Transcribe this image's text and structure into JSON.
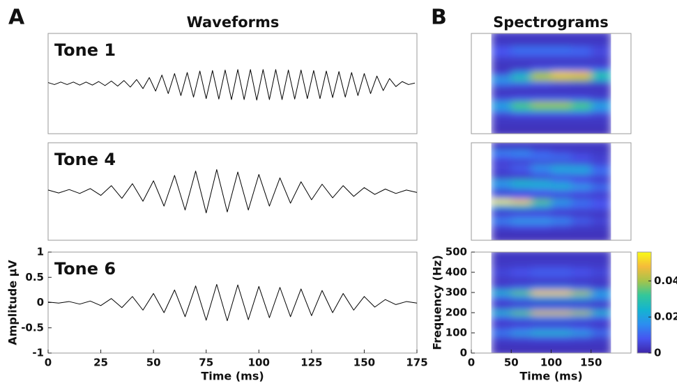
{
  "figure": {
    "panels": [
      {
        "letter": "A",
        "title": "Waveforms"
      },
      {
        "letter": "B",
        "title": "Spectrograms"
      }
    ]
  },
  "chart_data": [
    {
      "type": "line",
      "label": "Tone 1",
      "color": "#000000",
      "xlim": [
        0,
        175
      ],
      "ylim": [
        -1,
        1
      ],
      "x": [
        0,
        3,
        6,
        9,
        12,
        15,
        18,
        21,
        24,
        27,
        30,
        33,
        36,
        39,
        42,
        45,
        48,
        51,
        54,
        57,
        60,
        63,
        66,
        69,
        72,
        75,
        78,
        81,
        84,
        87,
        90,
        93,
        96,
        99,
        102,
        105,
        108,
        111,
        114,
        117,
        120,
        123,
        126,
        129,
        132,
        135,
        138,
        141,
        144,
        147,
        150,
        153,
        156,
        159,
        162,
        165,
        168,
        171,
        174
      ],
      "values": [
        0.02,
        -0.02,
        0.03,
        -0.02,
        0.03,
        -0.03,
        0.03,
        -0.03,
        0.04,
        -0.04,
        0.05,
        -0.05,
        0.06,
        -0.07,
        0.08,
        -0.1,
        0.12,
        -0.15,
        0.17,
        -0.2,
        0.2,
        -0.24,
        0.22,
        -0.27,
        0.25,
        -0.3,
        0.26,
        -0.31,
        0.27,
        -0.32,
        0.28,
        -0.32,
        0.28,
        -0.33,
        0.28,
        -0.32,
        0.28,
        -0.32,
        0.27,
        -0.31,
        0.27,
        -0.3,
        0.26,
        -0.3,
        0.25,
        -0.28,
        0.24,
        -0.27,
        0.22,
        -0.24,
        0.2,
        -0.2,
        0.15,
        -0.14,
        0.1,
        -0.06,
        0.04,
        -0.02,
        0.01
      ]
    },
    {
      "type": "line",
      "label": "Tone 4",
      "color": "#000000",
      "xlim": [
        0,
        175
      ],
      "ylim": [
        -1,
        1
      ],
      "x": [
        0,
        5,
        10,
        15,
        20,
        25,
        30,
        35,
        40,
        45,
        50,
        55,
        60,
        65,
        70,
        75,
        80,
        85,
        90,
        95,
        100,
        105,
        110,
        115,
        120,
        125,
        130,
        135,
        140,
        145,
        150,
        155,
        160,
        165,
        170,
        175
      ],
      "values": [
        0.03,
        -0.03,
        0.04,
        -0.04,
        0.06,
        -0.08,
        0.12,
        -0.14,
        0.16,
        -0.2,
        0.22,
        -0.3,
        0.33,
        -0.38,
        0.42,
        -0.44,
        0.45,
        -0.42,
        0.4,
        -0.38,
        0.35,
        -0.3,
        0.28,
        -0.24,
        0.2,
        -0.17,
        0.15,
        -0.13,
        0.12,
        -0.1,
        0.08,
        -0.06,
        0.05,
        -0.04,
        0.03,
        -0.02
      ]
    },
    {
      "type": "line",
      "label": "Tone 6",
      "color": "#000000",
      "xlim": [
        0,
        175
      ],
      "ylim": [
        -1,
        1
      ],
      "xticks": [
        0,
        25,
        50,
        75,
        100,
        125,
        150,
        175
      ],
      "yticks": [
        -1,
        -0.5,
        0,
        0.5,
        1
      ],
      "xlabel": "Time (ms)",
      "ylabel": "Amplitude μV",
      "x": [
        0,
        5,
        10,
        15,
        20,
        25,
        30,
        35,
        40,
        45,
        50,
        55,
        60,
        65,
        70,
        75,
        80,
        85,
        90,
        95,
        100,
        105,
        110,
        115,
        120,
        125,
        130,
        135,
        140,
        145,
        150,
        155,
        160,
        165,
        170,
        175
      ],
      "values": [
        0.01,
        -0.01,
        0.02,
        -0.03,
        0.03,
        -0.06,
        0.08,
        -0.1,
        0.12,
        -0.15,
        0.18,
        -0.2,
        0.25,
        -0.28,
        0.33,
        -0.35,
        0.36,
        -0.36,
        0.35,
        -0.34,
        0.32,
        -0.3,
        0.3,
        -0.28,
        0.27,
        -0.26,
        0.24,
        -0.2,
        0.18,
        -0.15,
        0.12,
        -0.09,
        0.06,
        -0.04,
        0.02,
        -0.01
      ]
    },
    {
      "type": "heatmap",
      "xlim": [
        0,
        200
      ],
      "ylim": [
        0,
        500
      ],
      "clim": [
        0,
        0.056
      ],
      "colormap": [
        "#3e26a8",
        "#4655f0",
        "#2c8ef0",
        "#14b4d0",
        "#33c79a",
        "#a6c44b",
        "#f5bb3a",
        "#f9fb15"
      ],
      "times": [
        37.5,
        62.5,
        87.5,
        112.5,
        137.5,
        162.5
      ],
      "frequencies": [
        0,
        25,
        50,
        75,
        100,
        125,
        150,
        175,
        200,
        225,
        250,
        275,
        300,
        325,
        350,
        375,
        400,
        425,
        450,
        475,
        500
      ],
      "values": [
        [
          0.002,
          0.002,
          0.002,
          0.002,
          0.002,
          0.002
        ],
        [
          0.002,
          0.002,
          0.002,
          0.002,
          0.002,
          0.002
        ],
        [
          0.003,
          0.003,
          0.003,
          0.003,
          0.003,
          0.003
        ],
        [
          0.003,
          0.003,
          0.003,
          0.003,
          0.003,
          0.003
        ],
        [
          0.006,
          0.008,
          0.008,
          0.008,
          0.008,
          0.006
        ],
        [
          0.018,
          0.03,
          0.034,
          0.034,
          0.03,
          0.018
        ],
        [
          0.02,
          0.034,
          0.04,
          0.04,
          0.034,
          0.02
        ],
        [
          0.006,
          0.008,
          0.009,
          0.009,
          0.008,
          0.005
        ],
        [
          0.003,
          0.003,
          0.003,
          0.003,
          0.003,
          0.003
        ],
        [
          0.003,
          0.003,
          0.003,
          0.003,
          0.003,
          0.003
        ],
        [
          0.012,
          0.01,
          0.008,
          0.006,
          0.005,
          0.004
        ],
        [
          0.02,
          0.03,
          0.04,
          0.042,
          0.04,
          0.025
        ],
        [
          0.006,
          0.02,
          0.04,
          0.05,
          0.048,
          0.03
        ],
        [
          0.002,
          0.004,
          0.008,
          0.01,
          0.01,
          0.008
        ],
        [
          0.003,
          0.003,
          0.003,
          0.003,
          0.003,
          0.003
        ],
        [
          0.004,
          0.004,
          0.004,
          0.004,
          0.004,
          0.004
        ],
        [
          0.008,
          0.01,
          0.01,
          0.01,
          0.01,
          0.006
        ],
        [
          0.008,
          0.012,
          0.012,
          0.012,
          0.01,
          0.006
        ],
        [
          0.003,
          0.003,
          0.003,
          0.003,
          0.003,
          0.003
        ],
        [
          0.003,
          0.003,
          0.003,
          0.003,
          0.003,
          0.003
        ],
        [
          0.003,
          0.003,
          0.003,
          0.003,
          0.003,
          0.003
        ]
      ]
    },
    {
      "type": "heatmap",
      "xlim": [
        0,
        200
      ],
      "ylim": [
        0,
        500
      ],
      "clim": [
        0,
        0.056
      ],
      "colormap": [
        "#3e26a8",
        "#4655f0",
        "#2c8ef0",
        "#14b4d0",
        "#33c79a",
        "#a6c44b",
        "#f5bb3a",
        "#f9fb15"
      ],
      "times": [
        37.5,
        62.5,
        87.5,
        112.5,
        137.5,
        162.5
      ],
      "frequencies": [
        0,
        25,
        50,
        75,
        100,
        125,
        150,
        175,
        200,
        225,
        250,
        275,
        300,
        325,
        350,
        375,
        400,
        425,
        450,
        475,
        500
      ],
      "values": [
        [
          0.002,
          0.002,
          0.002,
          0.002,
          0.002,
          0.002
        ],
        [
          0.002,
          0.002,
          0.002,
          0.002,
          0.002,
          0.002
        ],
        [
          0.003,
          0.003,
          0.003,
          0.003,
          0.003,
          0.003
        ],
        [
          0.006,
          0.008,
          0.008,
          0.006,
          0.004,
          0.003
        ],
        [
          0.015,
          0.02,
          0.02,
          0.016,
          0.01,
          0.006
        ],
        [
          0.006,
          0.008,
          0.008,
          0.006,
          0.004,
          0.003
        ],
        [
          0.004,
          0.004,
          0.004,
          0.004,
          0.004,
          0.004
        ],
        [
          0.02,
          0.025,
          0.02,
          0.012,
          0.01,
          0.008
        ],
        [
          0.055,
          0.05,
          0.035,
          0.02,
          0.012,
          0.008
        ],
        [
          0.01,
          0.008,
          0.006,
          0.005,
          0.004,
          0.004
        ],
        [
          0.004,
          0.006,
          0.008,
          0.01,
          0.008,
          0.006
        ],
        [
          0.015,
          0.02,
          0.022,
          0.025,
          0.02,
          0.012
        ],
        [
          0.02,
          0.025,
          0.022,
          0.015,
          0.008,
          0.005
        ],
        [
          0.004,
          0.004,
          0.005,
          0.006,
          0.006,
          0.005
        ],
        [
          0.004,
          0.006,
          0.012,
          0.018,
          0.02,
          0.012
        ],
        [
          0.006,
          0.01,
          0.018,
          0.022,
          0.02,
          0.01
        ],
        [
          0.004,
          0.004,
          0.005,
          0.005,
          0.005,
          0.004
        ],
        [
          0.008,
          0.01,
          0.012,
          0.012,
          0.008,
          0.005
        ],
        [
          0.015,
          0.016,
          0.01,
          0.006,
          0.004,
          0.003
        ],
        [
          0.004,
          0.004,
          0.003,
          0.003,
          0.003,
          0.003
        ],
        [
          0.003,
          0.003,
          0.003,
          0.003,
          0.003,
          0.003
        ]
      ]
    },
    {
      "type": "heatmap",
      "xlim": [
        0,
        200
      ],
      "ylim": [
        0,
        500
      ],
      "clim": [
        0,
        0.056
      ],
      "colormap": [
        "#3e26a8",
        "#4655f0",
        "#2c8ef0",
        "#14b4d0",
        "#33c79a",
        "#a6c44b",
        "#f5bb3a",
        "#f9fb15"
      ],
      "xticks": [
        0,
        50,
        100,
        150
      ],
      "yticks": [
        0,
        100,
        200,
        300,
        400,
        500
      ],
      "cticks": [
        0,
        0.02,
        0.04
      ],
      "xlabel": "Time (ms)",
      "ylabel": "Frequency (Hz)",
      "times": [
        37.5,
        62.5,
        87.5,
        112.5,
        137.5,
        162.5
      ],
      "frequencies": [
        0,
        25,
        50,
        75,
        100,
        125,
        150,
        175,
        200,
        225,
        250,
        275,
        300,
        325,
        350,
        375,
        400,
        425,
        450,
        475,
        500
      ],
      "values": [
        [
          0.002,
          0.002,
          0.002,
          0.002,
          0.002,
          0.002
        ],
        [
          0.002,
          0.002,
          0.002,
          0.002,
          0.002,
          0.002
        ],
        [
          0.003,
          0.003,
          0.003,
          0.003,
          0.003,
          0.003
        ],
        [
          0.005,
          0.006,
          0.007,
          0.007,
          0.006,
          0.004
        ],
        [
          0.014,
          0.02,
          0.025,
          0.025,
          0.02,
          0.012
        ],
        [
          0.006,
          0.008,
          0.01,
          0.01,
          0.008,
          0.005
        ],
        [
          0.003,
          0.003,
          0.003,
          0.003,
          0.003,
          0.003
        ],
        [
          0.008,
          0.012,
          0.014,
          0.014,
          0.012,
          0.008
        ],
        [
          0.025,
          0.035,
          0.045,
          0.045,
          0.04,
          0.025
        ],
        [
          0.006,
          0.01,
          0.012,
          0.012,
          0.01,
          0.006
        ],
        [
          0.003,
          0.003,
          0.003,
          0.003,
          0.003,
          0.003
        ],
        [
          0.01,
          0.015,
          0.02,
          0.02,
          0.02,
          0.015
        ],
        [
          0.025,
          0.035,
          0.05,
          0.05,
          0.04,
          0.02
        ],
        [
          0.006,
          0.01,
          0.014,
          0.014,
          0.01,
          0.005
        ],
        [
          0.003,
          0.003,
          0.003,
          0.003,
          0.003,
          0.003
        ],
        [
          0.004,
          0.005,
          0.006,
          0.006,
          0.005,
          0.004
        ],
        [
          0.006,
          0.008,
          0.01,
          0.01,
          0.008,
          0.006
        ],
        [
          0.004,
          0.005,
          0.006,
          0.006,
          0.005,
          0.004
        ],
        [
          0.003,
          0.003,
          0.003,
          0.003,
          0.003,
          0.003
        ],
        [
          0.003,
          0.003,
          0.003,
          0.003,
          0.003,
          0.003
        ],
        [
          0.003,
          0.003,
          0.003,
          0.003,
          0.003,
          0.003
        ]
      ]
    }
  ]
}
